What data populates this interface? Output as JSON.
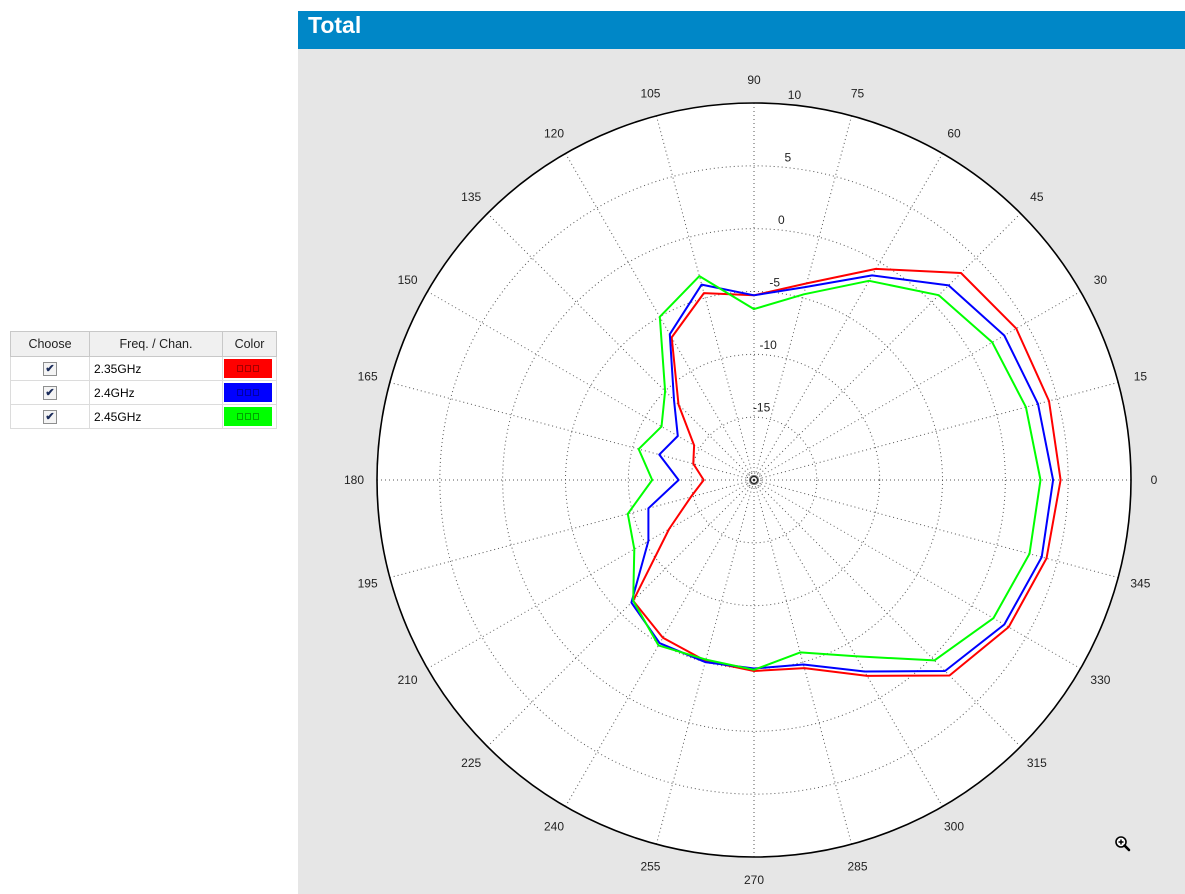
{
  "legend": {
    "headers": [
      "Choose",
      "Freq. / Chan.",
      "Color"
    ],
    "rows": [
      {
        "checked": true,
        "freq": "2.35GHz",
        "color": "#ff0000"
      },
      {
        "checked": true,
        "freq": "2.4GHz",
        "color": "#0000ff"
      },
      {
        "checked": true,
        "freq": "2.45GHz",
        "color": "#00ff00"
      }
    ]
  },
  "panel": {
    "title": "Total",
    "background": "#e6e6e6",
    "header_color": "#0087c7"
  },
  "icons": {
    "zoom": "zoom-in-icon",
    "check": "checkmark-icon"
  },
  "chart_data": {
    "type": "polar-line",
    "title": "Total",
    "r_ticks": [
      -15,
      -10,
      -5,
      0,
      5,
      10
    ],
    "r_tick_labels": [
      "-15",
      "-10",
      "-5",
      "0",
      "5",
      "10"
    ],
    "angle_ticks": [
      0,
      15,
      30,
      45,
      60,
      75,
      90,
      105,
      120,
      135,
      150,
      165,
      180,
      195,
      210,
      225,
      240,
      255,
      270,
      285,
      300,
      315,
      330,
      345
    ],
    "angle_tick_labels": [
      "0",
      "15",
      "30",
      "45",
      "60",
      "75",
      "90",
      "105",
      "120",
      "135",
      "150",
      "165",
      "180",
      "195",
      "210",
      "225",
      "240",
      "255",
      "270",
      "285",
      "300",
      "315",
      "330",
      "345"
    ],
    "rlim": [
      -20,
      10
    ],
    "grid": true,
    "series": [
      {
        "name": "2.35GHz",
        "color": "#ff0000",
        "theta": [
          0,
          15,
          30,
          45,
          60,
          75,
          90,
          105,
          120,
          135,
          150,
          165,
          180,
          195,
          210,
          225,
          240,
          255,
          270,
          285,
          300,
          315,
          330,
          345
        ],
        "r": [
          4.4,
          4.3,
          4.1,
          3.3,
          -0.6,
          -3.8,
          -5.3,
          -4.6,
          -6.9,
          -11.5,
          -14.5,
          -15.0,
          -16.0,
          -14.8,
          -12.2,
          -6.4,
          -5.5,
          -5.1,
          -4.8,
          -4.5,
          -2.0,
          2.0,
          3.4,
          4.1
        ]
      },
      {
        "name": "2.4GHz",
        "color": "#0000ff",
        "theta": [
          0,
          15,
          30,
          45,
          60,
          75,
          90,
          105,
          120,
          135,
          150,
          165,
          180,
          195,
          210,
          225,
          240,
          255,
          270,
          285,
          300,
          315,
          330,
          345
        ],
        "r": [
          3.8,
          3.4,
          3.0,
          1.9,
          -1.2,
          -4.1,
          -5.3,
          -3.9,
          -6.6,
          -11.0,
          -13.0,
          -12.2,
          -14.0,
          -11.3,
          -10.3,
          -6.2,
          -5.0,
          -5.0,
          -5.0,
          -4.8,
          -2.4,
          1.5,
          3.0,
          3.7
        ]
      },
      {
        "name": "2.45GHz",
        "color": "#00ff00",
        "theta": [
          0,
          15,
          30,
          45,
          60,
          75,
          90,
          105,
          120,
          135,
          150,
          165,
          180,
          195,
          210,
          225,
          240,
          255,
          270,
          285,
          300,
          315,
          330,
          345
        ],
        "r": [
          2.8,
          2.4,
          1.9,
          0.8,
          -1.7,
          -4.7,
          -6.4,
          -3.2,
          -5.0,
          -10.0,
          -11.5,
          -10.5,
          -11.9,
          -9.6,
          -9.0,
          -6.4,
          -4.8,
          -5.2,
          -4.9,
          -5.8,
          -3.8,
          0.3,
          2.0,
          2.7
        ]
      }
    ]
  }
}
